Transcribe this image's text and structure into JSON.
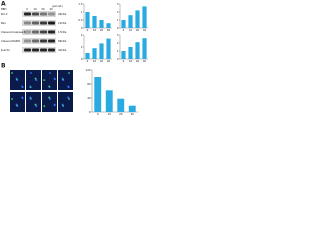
{
  "panels": [
    "A",
    "B"
  ],
  "blot": {
    "treatment": "BBH",
    "doses": [
      "0",
      "10",
      "20",
      "40"
    ],
    "unit": "(μmol/L)",
    "rows": [
      {
        "label": "Bcl-2",
        "size": "26kDa"
      },
      {
        "label": "Bax",
        "size": "21kDa"
      },
      {
        "label": "Cleaved-Caspase3",
        "size": "17kDa"
      },
      {
        "label": "Cleaved-PARP1",
        "size": "89kDa"
      },
      {
        "label": "β-actin",
        "size": "42kDa"
      }
    ]
  },
  "chart_data": [
    {
      "type": "bar",
      "categories": [
        "0",
        "10",
        "20",
        "40"
      ],
      "values": [
        1,
        0.75,
        0.5,
        0.3
      ],
      "color": "#29abe2",
      "ylim": [
        0,
        1.5
      ],
      "yticks": [
        0,
        0.5,
        1,
        1.5
      ]
    },
    {
      "type": "bar",
      "categories": [
        "0",
        "10",
        "20",
        "40"
      ],
      "values": [
        1,
        1.6,
        2.2,
        2.7
      ],
      "color": "#29abe2",
      "ylim": [
        0,
        3
      ],
      "yticks": [
        0,
        1,
        2,
        3
      ]
    },
    {
      "type": "bar",
      "categories": [
        "0",
        "10",
        "20",
        "40"
      ],
      "values": [
        1,
        1.8,
        2.6,
        3.4
      ],
      "color": "#29abe2",
      "ylim": [
        0,
        4
      ],
      "yticks": [
        0,
        2,
        4
      ]
    },
    {
      "type": "bar",
      "categories": [
        "0",
        "10",
        "20",
        "40"
      ],
      "values": [
        1,
        1.5,
        2.1,
        2.6
      ],
      "color": "#29abe2",
      "ylim": [
        0,
        3
      ],
      "yticks": [
        0,
        1,
        2,
        3
      ]
    },
    {
      "type": "bar",
      "categories": [
        "0",
        "10",
        "20",
        "40"
      ],
      "values": [
        100,
        62,
        38,
        18
      ],
      "color": "#29abe2",
      "ylim": [
        0,
        120
      ],
      "yticks": [
        0,
        40,
        80,
        120
      ]
    }
  ]
}
